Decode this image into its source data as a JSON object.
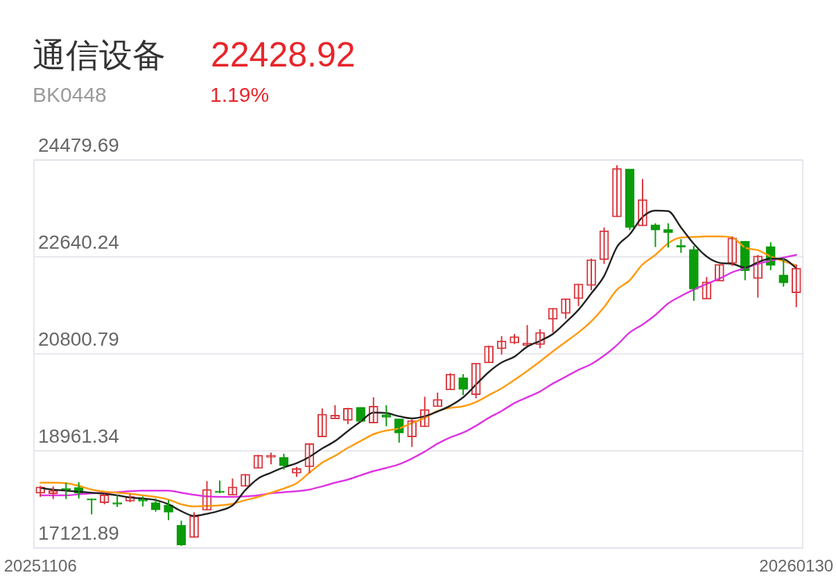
{
  "chart_data": {
    "type": "candlestick",
    "title": "通信设备",
    "subtitle": "BK0448",
    "annotations": [
      "22428.92",
      "1.19%"
    ],
    "categories": [
      "20251106",
      null,
      null,
      null,
      null,
      null,
      null,
      null,
      null,
      null,
      null,
      null,
      null,
      null,
      null,
      null,
      null,
      null,
      null,
      null,
      null,
      null,
      null,
      null,
      null,
      null,
      null,
      null,
      null,
      null,
      null,
      null,
      null,
      null,
      null,
      null,
      null,
      null,
      null,
      null,
      null,
      null,
      null,
      null,
      null,
      null,
      null,
      null,
      null,
      null,
      null,
      null,
      null,
      null,
      null,
      null,
      null,
      null,
      null,
      "20260130"
    ],
    "ohlc": [
      [
        18160,
        18300,
        18090,
        18280
      ],
      [
        18150,
        18290,
        18050,
        18210
      ],
      [
        18250,
        18360,
        18050,
        18220
      ],
      [
        18270,
        18370,
        18060,
        18160
      ],
      [
        18050,
        18060,
        17760,
        18030
      ],
      [
        17980,
        18150,
        17950,
        18130
      ],
      [
        17980,
        18130,
        17900,
        17950
      ],
      [
        18010,
        18140,
        17990,
        18100
      ],
      [
        18050,
        18100,
        17910,
        18010
      ],
      [
        17980,
        18060,
        17810,
        17850
      ],
      [
        17940,
        18030,
        17650,
        17800
      ],
      [
        17550,
        17640,
        17160,
        17180
      ],
      [
        17320,
        17800,
        17320,
        17730
      ],
      [
        17840,
        18390,
        17840,
        18230
      ],
      [
        18200,
        18400,
        18160,
        18170
      ],
      [
        18120,
        18440,
        18120,
        18280
      ],
      [
        18290,
        18520,
        18290,
        18520
      ],
      [
        18630,
        18890,
        18630,
        18880
      ],
      [
        18840,
        18930,
        18710,
        18880
      ],
      [
        18840,
        18910,
        18610,
        18680
      ],
      [
        18540,
        18660,
        18470,
        18630
      ],
      [
        18660,
        19100,
        18540,
        19100
      ],
      [
        19230,
        19770,
        19230,
        19660
      ],
      [
        19570,
        19830,
        19570,
        19640
      ],
      [
        19540,
        19780,
        19470,
        19770
      ],
      [
        19790,
        19790,
        19520,
        19520
      ],
      [
        19490,
        19980,
        19490,
        19810
      ],
      [
        19650,
        19830,
        19430,
        19600
      ],
      [
        19570,
        19570,
        19120,
        19300
      ],
      [
        19230,
        19560,
        19040,
        19540
      ],
      [
        19420,
        19990,
        19420,
        19750
      ],
      [
        19800,
        20070,
        19800,
        19940
      ],
      [
        20120,
        20440,
        20120,
        20420
      ],
      [
        20350,
        20420,
        20020,
        20130
      ],
      [
        20030,
        20630,
        19960,
        20630
      ],
      [
        20630,
        20960,
        20630,
        20950
      ],
      [
        20900,
        21140,
        20790,
        21050
      ],
      [
        21010,
        21180,
        20990,
        21130
      ],
      [
        20960,
        21350,
        20960,
        21010
      ],
      [
        20980,
        21270,
        20910,
        21210
      ],
      [
        21460,
        21670,
        21210,
        21670
      ],
      [
        21570,
        21850,
        21470,
        21850
      ],
      [
        21850,
        22130,
        21710,
        22130
      ],
      [
        22100,
        22610,
        22010,
        22590
      ],
      [
        22590,
        23200,
        22510,
        23140
      ],
      [
        23400,
        24380,
        23400,
        24320
      ],
      [
        24310,
        24310,
        23150,
        23200
      ],
      [
        23230,
        24120,
        23230,
        23730
      ],
      [
        23250,
        23280,
        22830,
        23150
      ],
      [
        23160,
        23280,
        22820,
        23100
      ],
      [
        22860,
        22980,
        22720,
        22830
      ],
      [
        22780,
        22850,
        21810,
        22030
      ],
      [
        21840,
        22260,
        21840,
        22170
      ],
      [
        22180,
        22500,
        22180,
        22500
      ],
      [
        22520,
        23030,
        22470,
        23000
      ],
      [
        22940,
        22940,
        22200,
        22380
      ],
      [
        22230,
        22680,
        21870,
        22660
      ],
      [
        22840,
        22920,
        22390,
        22480
      ],
      [
        22300,
        22630,
        22080,
        22150
      ],
      [
        21960,
        22500,
        21690,
        22430
      ]
    ],
    "colors": [
      "#d7363c",
      "#d7363c",
      "#0b9c0b",
      "#0b9c0b",
      "#0b9c0b",
      "#d7363c",
      "#0b9c0b",
      "#d7363c",
      "#0b9c0b",
      "#0b9c0b",
      "#0b9c0b",
      "#0b9c0b",
      "#d7363c",
      "#d7363c",
      "#0b9c0b",
      "#d7363c",
      "#d7363c",
      "#d7363c",
      "#d7363c",
      "#0b9c0b",
      "#d7363c",
      "#d7363c",
      "#d7363c",
      "#d7363c",
      "#d7363c",
      "#0b9c0b",
      "#d7363c",
      "#0b9c0b",
      "#0b9c0b",
      "#d7363c",
      "#d7363c",
      "#d7363c",
      "#d7363c",
      "#0b9c0b",
      "#d7363c",
      "#d7363c",
      "#d7363c",
      "#d7363c",
      "#d7363c",
      "#d7363c",
      "#d7363c",
      "#d7363c",
      "#d7363c",
      "#d7363c",
      "#d7363c",
      "#d7363c",
      "#0b9c0b",
      "#d7363c",
      "#0b9c0b",
      "#0b9c0b",
      "#0b9c0b",
      "#0b9c0b",
      "#d7363c",
      "#d7363c",
      "#d7363c",
      "#0b9c0b",
      "#d7363c",
      "#0b9c0b",
      "#0b9c0b",
      "#d7363c"
    ],
    "series": [
      {
        "type": "line",
        "color": "#222222",
        "values": [
          18260,
          18230,
          18210,
          18190,
          18170,
          18150,
          18120,
          18080,
          18060,
          18030,
          17950,
          17820,
          17730,
          17770,
          17830,
          17930,
          18220,
          18440,
          18550,
          18650,
          18730,
          18850,
          19010,
          19150,
          19340,
          19520,
          19690,
          19680,
          19620,
          19580,
          19620,
          19710,
          19820,
          19980,
          20220,
          20460,
          20640,
          20750,
          20940,
          21050,
          21180,
          21400,
          21640,
          21950,
          22280,
          22830,
          23070,
          23400,
          23520,
          23510,
          23200,
          22890,
          22650,
          22530,
          22510,
          22440,
          22540,
          22610,
          22600,
          22430
        ]
      },
      {
        "type": "line",
        "color": "#ff9a0a",
        "values": [
          18360,
          18360,
          18350,
          18300,
          18230,
          18190,
          18170,
          18150,
          18120,
          18090,
          18040,
          17950,
          17910,
          17920,
          17930,
          17960,
          18030,
          18090,
          18170,
          18250,
          18350,
          18550,
          18740,
          18870,
          19020,
          19150,
          19280,
          19350,
          19390,
          19490,
          19590,
          19720,
          19780,
          19810,
          19890,
          20020,
          20150,
          20310,
          20480,
          20660,
          20850,
          21030,
          21210,
          21420,
          21690,
          22020,
          22200,
          22500,
          22680,
          22900,
          23010,
          23020,
          23030,
          23030,
          23010,
          22820,
          22770,
          22650,
          22560,
          22480
        ]
      },
      {
        "type": "line",
        "color": "#de33e3",
        "values": [
          18120,
          18120,
          18120,
          18140,
          18160,
          18170,
          18180,
          18200,
          18210,
          18210,
          18210,
          18170,
          18130,
          18100,
          18090,
          18090,
          18100,
          18120,
          18160,
          18180,
          18200,
          18230,
          18290,
          18360,
          18420,
          18500,
          18580,
          18640,
          18710,
          18820,
          18950,
          19100,
          19220,
          19310,
          19440,
          19590,
          19720,
          19870,
          19980,
          20090,
          20240,
          20370,
          20500,
          20610,
          20770,
          20970,
          21210,
          21360,
          21540,
          21760,
          21900,
          22020,
          22130,
          22230,
          22350,
          22430,
          22510,
          22570,
          22630,
          22680
        ]
      }
    ],
    "ylim": [
      17121.89,
      24479.69
    ],
    "yticks": [
      17121.89,
      18961.34,
      20800.79,
      22640.24,
      24479.69
    ],
    "grid": "y",
    "marker": "none"
  }
}
